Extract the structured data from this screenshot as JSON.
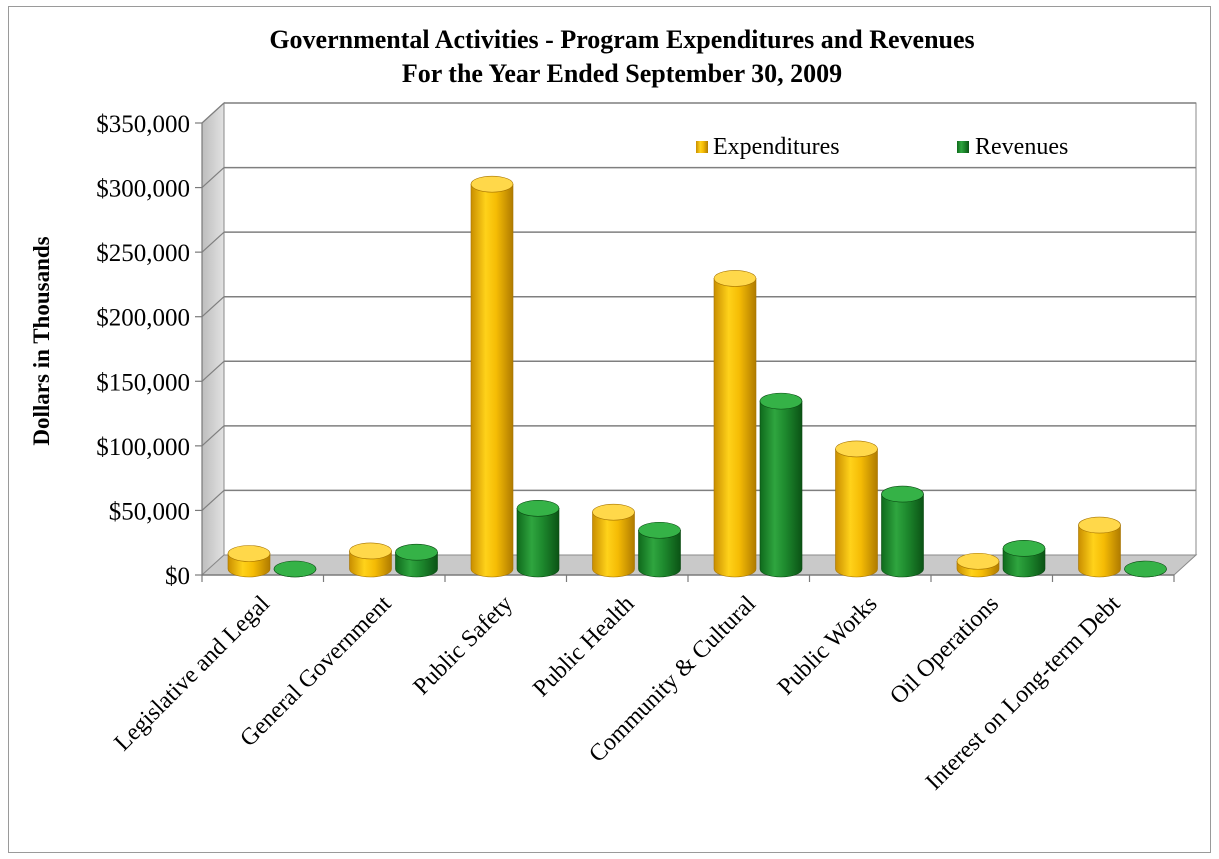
{
  "chart_data": {
    "type": "bar",
    "title": "Governmental Activities - Program Expenditures and Revenues",
    "subtitle": "For the Year Ended September 30, 2009",
    "xlabel": "",
    "ylabel": "Dollars in Thousands",
    "ylim": [
      0,
      350000
    ],
    "y_ticks": [
      0,
      50000,
      100000,
      150000,
      200000,
      250000,
      300000,
      350000
    ],
    "y_tick_labels": [
      "$0",
      "$50,000",
      "$100,000",
      "$150,000",
      "$200,000",
      "$250,000",
      "$300,000",
      "$350,000"
    ],
    "categories": [
      "Legislative and Legal",
      "General Government",
      "Public Safety",
      "Public Health",
      "Community & Cultural",
      "Public Works",
      "Oil Operations",
      "Interest on Long-term Debt"
    ],
    "series": [
      {
        "name": "Expenditures",
        "values": [
          12000,
          14000,
          298000,
          44000,
          225000,
          93000,
          6000,
          34000
        ]
      },
      {
        "name": "Revenues",
        "values": [
          0,
          13000,
          47000,
          30000,
          130000,
          58000,
          16000,
          0
        ]
      }
    ],
    "grid": true,
    "legend_position": "top-right",
    "colors": {
      "Expenditures": "#f2b705",
      "Revenues": "#1e8a2e",
      "floor": "#c8c8c8",
      "back_wall": "#ffffff",
      "side_wall": "#d0d0d0",
      "gridline": "#7f7f7f"
    }
  }
}
